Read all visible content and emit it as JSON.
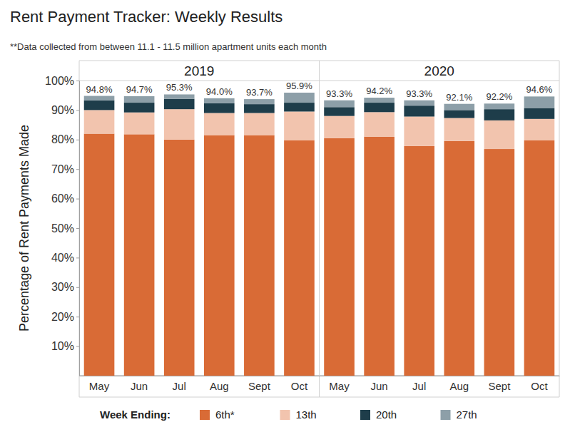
{
  "chart_data": {
    "type": "bar",
    "title": "Rent Payment Tracker: Weekly Results",
    "subtitle": "**Data collected from between 11.1 - 11.5 million apartment units each month",
    "y_label": "Percentage of Rent Payments Made",
    "legend_title": "Week Ending:",
    "stacked": true,
    "grid": false,
    "legend": "bottom",
    "ylim": [
      0,
      100
    ],
    "yticks": [
      {
        "value": 10,
        "label": "10%"
      },
      {
        "value": 20,
        "label": "20%"
      },
      {
        "value": 30,
        "label": "30%"
      },
      {
        "value": 40,
        "label": "40%"
      },
      {
        "value": 50,
        "label": "50%"
      },
      {
        "value": 60,
        "label": "60%"
      },
      {
        "value": 70,
        "label": "70%"
      },
      {
        "value": 80,
        "label": "80%"
      },
      {
        "value": 90,
        "label": "90%"
      },
      {
        "value": 100,
        "label": "100%"
      }
    ],
    "series": [
      {
        "name": "6th*",
        "color": "#d96b36"
      },
      {
        "name": "13th",
        "color": "#f2c4ae"
      },
      {
        "name": "20th",
        "color": "#1e3d4a"
      },
      {
        "name": "27th",
        "color": "#8d9fa8"
      }
    ],
    "panels": [
      {
        "title": "2019",
        "categories": [
          "May",
          "Jun",
          "Jul",
          "Aug",
          "Sept",
          "Oct"
        ],
        "series": [
          {
            "values": [
              82.0,
              81.8,
              80.0,
              81.5,
              81.5,
              79.8
            ]
          },
          {
            "values": [
              8.0,
              7.4,
              10.3,
              7.5,
              7.5,
              9.7
            ]
          },
          {
            "values": [
              3.3,
              3.3,
              3.5,
              3.3,
              3.0,
              3.0
            ]
          },
          {
            "values": [
              1.5,
              2.2,
              1.5,
              1.7,
              1.7,
              3.4
            ]
          }
        ],
        "totals": [
          94.8,
          94.7,
          95.3,
          94.0,
          93.7,
          95.9
        ],
        "total_labels": [
          "94.8%",
          "94.7%",
          "95.3%",
          "94.0%",
          "93.7%",
          "95.9%"
        ]
      },
      {
        "title": "2020",
        "categories": [
          "May",
          "Jun",
          "Jul",
          "Aug",
          "Sept",
          "Oct"
        ],
        "series": [
          {
            "values": [
              80.5,
              81.0,
              77.8,
              79.5,
              76.8,
              79.8
            ]
          },
          {
            "values": [
              7.5,
              8.3,
              10.0,
              7.8,
              9.7,
              7.2
            ]
          },
          {
            "values": [
              3.0,
              3.2,
              3.7,
              2.7,
              3.8,
              3.7
            ]
          },
          {
            "values": [
              2.3,
              1.7,
              1.8,
              2.1,
              1.9,
              3.9
            ]
          }
        ],
        "totals": [
          93.3,
          94.2,
          93.3,
          92.1,
          92.2,
          94.6
        ],
        "total_labels": [
          "93.3%",
          "94.2%",
          "93.3%",
          "92.1%",
          "92.2%",
          "94.6%"
        ]
      }
    ]
  }
}
